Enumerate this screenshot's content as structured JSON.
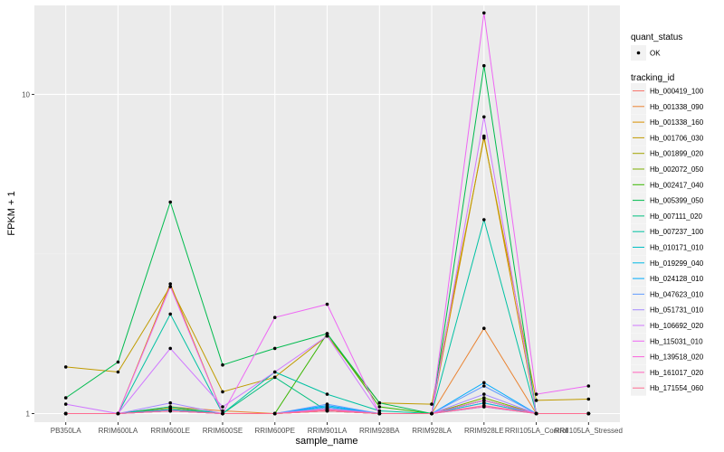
{
  "chart_data": {
    "type": "line",
    "xlabel": "sample_name",
    "ylabel": "FPKM + 1",
    "y_scale": "log10",
    "ylim": [
      0.94,
      19
    ],
    "y_ticks": [
      1,
      10
    ],
    "y_tick_labels": [
      "1",
      "10"
    ],
    "grid": true,
    "legend_position": "right",
    "categories": [
      "PB350LA",
      "RRIM600LA",
      "RRIM600LE",
      "RRIM600SE",
      "RRIM600PE",
      "RRIM901LA",
      "RRIM928BA",
      "RRIM928LA",
      "RRIM928LE",
      "RRII105LA_Control",
      "RRII105LA_Stressed"
    ],
    "shape_legend": {
      "title": "quant_status",
      "items": [
        "OK"
      ]
    },
    "color_legend_title": "tracking_id",
    "series": [
      {
        "name": "Hb_000419_100",
        "color": "#F8766D",
        "values": [
          1.0,
          1.0,
          1.02,
          1.0,
          1.0,
          1.02,
          1.0,
          1.0,
          1.08,
          1.0,
          1.0
        ]
      },
      {
        "name": "Hb_001338_090",
        "color": "#EA8331",
        "values": [
          1.0,
          1.0,
          1.05,
          1.02,
          1.0,
          1.03,
          1.0,
          1.0,
          1.85,
          1.0,
          1.0
        ]
      },
      {
        "name": "Hb_001338_160",
        "color": "#D89000",
        "values": [
          1.0,
          1.0,
          2.55,
          1.0,
          1.0,
          1.02,
          1.0,
          1.0,
          7.4,
          1.0,
          1.0
        ]
      },
      {
        "name": "Hb_001706_030",
        "color": "#C09B00",
        "values": [
          1.4,
          1.35,
          2.5,
          1.17,
          1.3,
          1.75,
          1.08,
          1.07,
          7.3,
          1.1,
          1.11
        ]
      },
      {
        "name": "Hb_001899_020",
        "color": "#A3A500",
        "values": [
          1.0,
          1.0,
          1.04,
          1.0,
          1.0,
          1.02,
          1.0,
          1.0,
          1.1,
          1.0,
          1.0
        ]
      },
      {
        "name": "Hb_002072_050",
        "color": "#7CAE00",
        "values": [
          1.0,
          1.0,
          1.03,
          1.0,
          1.0,
          1.02,
          1.0,
          1.0,
          1.12,
          1.0,
          1.0
        ]
      },
      {
        "name": "Hb_002417_040",
        "color": "#39B600",
        "values": [
          1.0,
          1.0,
          1.02,
          1.0,
          1.0,
          1.78,
          1.05,
          1.0,
          1.1,
          1.0,
          1.0
        ]
      },
      {
        "name": "Hb_005399_050",
        "color": "#00BB4E",
        "values": [
          1.12,
          1.45,
          4.6,
          1.42,
          1.6,
          1.78,
          1.08,
          1.0,
          12.3,
          1.0,
          1.0
        ]
      },
      {
        "name": "Hb_007111_020",
        "color": "#00BF7D",
        "values": [
          1.0,
          1.0,
          1.05,
          1.0,
          1.3,
          1.02,
          1.0,
          1.0,
          1.1,
          1.0,
          1.0
        ]
      },
      {
        "name": "Hb_007237_100",
        "color": "#00C1A3",
        "values": [
          1.0,
          1.0,
          2.05,
          1.0,
          1.35,
          1.15,
          1.02,
          1.0,
          4.05,
          1.0,
          1.0
        ]
      },
      {
        "name": "Hb_010171_010",
        "color": "#00BFC4",
        "values": [
          1.0,
          1.0,
          1.02,
          1.0,
          1.0,
          1.04,
          1.0,
          1.0,
          1.05,
          1.0,
          1.0
        ]
      },
      {
        "name": "Hb_019299_040",
        "color": "#00B8E5",
        "values": [
          1.0,
          1.0,
          1.02,
          1.0,
          1.0,
          1.05,
          1.0,
          1.0,
          1.08,
          1.0,
          1.0
        ]
      },
      {
        "name": "Hb_024128_010",
        "color": "#00ABFD",
        "values": [
          1.0,
          1.0,
          1.03,
          1.0,
          1.0,
          1.06,
          1.0,
          1.0,
          1.25,
          1.0,
          1.0
        ]
      },
      {
        "name": "Hb_047623_010",
        "color": "#619CFF",
        "values": [
          1.0,
          1.0,
          1.02,
          1.0,
          1.0,
          1.07,
          1.0,
          1.0,
          1.22,
          1.0,
          1.0
        ]
      },
      {
        "name": "Hb_051731_010",
        "color": "#A58AFF",
        "values": [
          1.0,
          1.0,
          1.08,
          1.0,
          1.0,
          1.04,
          1.0,
          1.0,
          1.15,
          1.0,
          1.0
        ]
      },
      {
        "name": "Hb_106692_020",
        "color": "#D078FF",
        "values": [
          1.07,
          1.0,
          1.6,
          1.05,
          1.35,
          1.75,
          1.0,
          1.0,
          8.5,
          1.0,
          1.0
        ]
      },
      {
        "name": "Hb_115031_010",
        "color": "#EE67F4",
        "values": [
          1.0,
          1.0,
          2.5,
          1.0,
          2.0,
          2.2,
          1.0,
          1.0,
          18.0,
          1.15,
          1.22
        ]
      },
      {
        "name": "Hb_139518_020",
        "color": "#FA62DB",
        "values": [
          1.0,
          1.0,
          1.02,
          1.0,
          1.0,
          1.02,
          1.0,
          1.0,
          1.1,
          1.0,
          1.0
        ]
      },
      {
        "name": "Hb_161017_020",
        "color": "#FF62BC",
        "values": [
          1.0,
          1.0,
          1.02,
          1.0,
          1.0,
          1.03,
          1.0,
          1.0,
          1.05,
          1.0,
          1.0
        ]
      },
      {
        "name": "Hb_171554_060",
        "color": "#FF6C91",
        "values": [
          1.0,
          1.0,
          1.02,
          1.0,
          1.0,
          1.02,
          1.0,
          1.0,
          1.06,
          1.0,
          1.0
        ]
      }
    ]
  },
  "colors": {
    "panel_background": "#EBEBEB",
    "grid_major": "#FFFFFF",
    "grid_minor": "#F2F2F2",
    "point": "#000000"
  }
}
